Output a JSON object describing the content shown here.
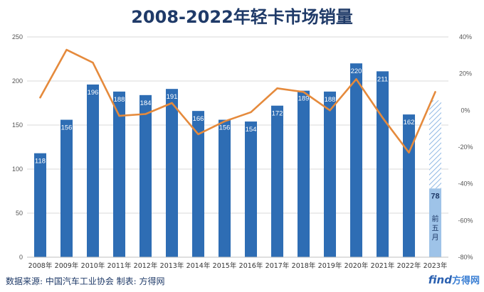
{
  "title": "2008-2022年轻卡市场销量",
  "footer": {
    "source": "数据来源: 中国汽车工业协会  制表: 方得网",
    "watermark_latin": "find",
    "watermark_cn": "方得网"
  },
  "colors": {
    "bar": "#2e6db4",
    "partial_bar": "#9ec3e8",
    "hatch": "#8fb8e4",
    "line": "#e58a3c",
    "grid": "#d9d9d9",
    "title": "#1f3a68"
  },
  "chart_data": {
    "type": "bar",
    "categories": [
      "2008年",
      "2009年",
      "2010年",
      "2011年",
      "2012年",
      "2013年",
      "2014年",
      "2015年",
      "2016年",
      "2017年",
      "2018年",
      "2019年",
      "2020年",
      "2021年",
      "2022年",
      "2023年"
    ],
    "series": [
      {
        "type": "bar",
        "axis": "left",
        "values": [
          118,
          156,
          196,
          188,
          184,
          191,
          166,
          156,
          154,
          172,
          189,
          188,
          220,
          211,
          162,
          null
        ],
        "data_labels": [
          "118",
          "156",
          "196",
          "188",
          "184",
          "191",
          "166",
          "156",
          "154",
          "172",
          "189",
          "188",
          "220",
          "211",
          "162",
          ""
        ]
      },
      {
        "type": "bar",
        "axis": "left",
        "style": "partial",
        "values": [
          null,
          null,
          null,
          null,
          null,
          null,
          null,
          null,
          null,
          null,
          null,
          null,
          null,
          null,
          null,
          78
        ],
        "projected_total": 178,
        "data_label": "78",
        "annotation": "前五月"
      },
      {
        "type": "line",
        "axis": "right",
        "values": [
          7,
          33,
          26,
          -3,
          -2,
          4,
          -13,
          -6,
          -1,
          12,
          10,
          0,
          17,
          -4,
          -23,
          10
        ]
      }
    ],
    "y_left": {
      "min": 0,
      "max": 250,
      "ticks": [
        "0",
        "50",
        "100",
        "150",
        "200",
        "250"
      ]
    },
    "y_right": {
      "min": -80,
      "max": 40,
      "ticks": [
        "-80%",
        "-60%",
        "-40%",
        "-20%",
        "0%",
        "20%",
        "40%"
      ]
    },
    "grid": true,
    "legend": "none"
  }
}
